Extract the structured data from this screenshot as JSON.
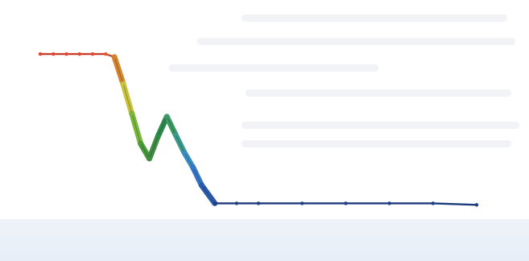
{
  "chart_data": {
    "type": "line",
    "title": "",
    "xlabel": "",
    "ylabel": "",
    "x": [
      0,
      3,
      6,
      9,
      12,
      15,
      17,
      19,
      21,
      23,
      25,
      27,
      29,
      31,
      33,
      35,
      37,
      40,
      45,
      50,
      60,
      70,
      80,
      90,
      100
    ],
    "series": [
      {
        "values": [
          1.0,
          1.0,
          1.0,
          1.0,
          1.0,
          1.0,
          0.98,
          0.8,
          0.6,
          0.4,
          0.3,
          0.45,
          0.58,
          0.46,
          0.34,
          0.24,
          0.12,
          0.0,
          0.0,
          0.0,
          0.0,
          0.0,
          0.0,
          0.0,
          -0.01
        ],
        "colors": [
          "#e8442a",
          "#e8442a",
          "#e8442a",
          "#e8442a",
          "#e8442a",
          "#e25a2c",
          "#d7842a",
          "#c9c33a",
          "#7ab83c",
          "#4a9a3a",
          "#3f8e42",
          "#2d8a4b",
          "#3c9a62",
          "#3c9a8a",
          "#3a8ebf",
          "#3577c6",
          "#2a5aa8",
          "#1d3f87",
          "#1d3f87",
          "#1d3f87",
          "#1d3f87",
          "#1d3f87",
          "#1d3f87",
          "#1d3f87",
          "#1d3f87"
        ]
      }
    ],
    "xlim": [
      0,
      100
    ],
    "ylim": [
      -0.3,
      1.2
    ],
    "grid": false,
    "legend": "none"
  }
}
